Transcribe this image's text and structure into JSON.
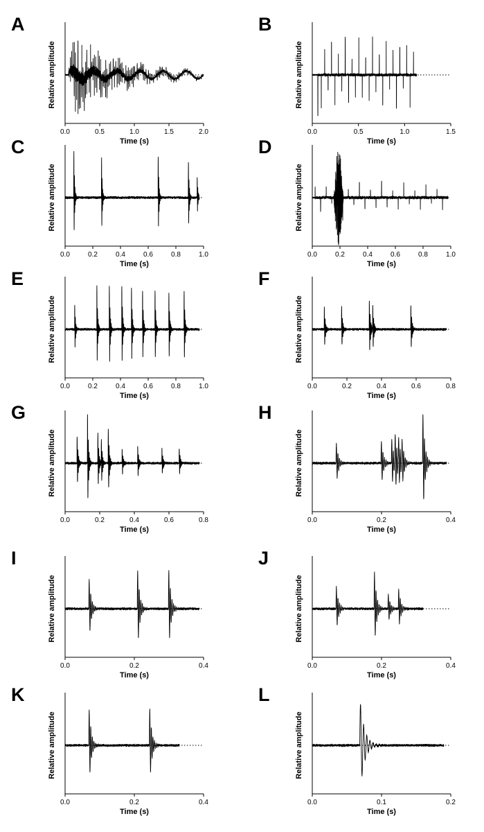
{
  "figure": {
    "layout": "6 rows × 2 columns of waveform panels"
  },
  "chart_data": [
    {
      "panel": "A",
      "type": "line",
      "xlabel": "Time (s)",
      "ylabel": "Relative amplitude",
      "xlim": [
        0,
        2.0
      ],
      "x_ticks": [
        "0.0",
        "0.5",
        "1.0",
        "1.5",
        "2.0"
      ],
      "signal": {
        "pattern": "continuous",
        "start": 0.05,
        "end": 2.0,
        "amp": 0.9,
        "peak_at": 0.12,
        "decay": 1.6,
        "rate": 55
      }
    },
    {
      "panel": "B",
      "type": "line",
      "xlabel": "Time (s)",
      "ylabel": "Relative amplitude",
      "xlim": [
        0,
        1.5
      ],
      "x_ticks": [
        "0.0",
        "0.5",
        "1.0",
        "1.5"
      ],
      "signal": {
        "pattern": "train",
        "start": 0.06,
        "end": 1.13,
        "period": 0.037,
        "amp": 0.75,
        "first_neg": 0.85,
        "dotted_to": 1.5
      }
    },
    {
      "panel": "C",
      "type": "line",
      "xlabel": "Time (s)",
      "ylabel": "Relative amplitude",
      "xlim": [
        0,
        1.1
      ],
      "x_ticks": [
        "0.0",
        "0.2",
        "0.4",
        "0.6",
        "0.8",
        "1.0"
      ],
      "signal": {
        "pattern": "pulses",
        "times": [
          0.07,
          0.29,
          0.74,
          0.98,
          1.05
        ],
        "amps": [
          0.95,
          0.8,
          0.85,
          0.75,
          0.4
        ],
        "dotted_to": 1.1
      }
    },
    {
      "panel": "D",
      "type": "line",
      "xlabel": "Time (s)",
      "ylabel": "Relative amplitude",
      "xlim": [
        0,
        1.0
      ],
      "x_ticks": [
        "0.0",
        "0.2",
        "0.4",
        "0.6",
        "0.8",
        "1.0"
      ],
      "signal": {
        "pattern": "train",
        "start": 0.02,
        "end": 0.98,
        "period": 0.04,
        "amp": 0.3,
        "burst_at": 0.19,
        "burst_amp": 1.0,
        "dotted_to": 1.0
      }
    },
    {
      "panel": "E",
      "type": "line",
      "xlabel": "Time (s)",
      "ylabel": "Relative amplitude",
      "xlim": [
        0,
        1.0
      ],
      "x_ticks": [
        "0.0",
        "0.2",
        "0.4",
        "0.6",
        "0.8",
        "1.0"
      ],
      "signal": {
        "pattern": "pulses",
        "times": [
          0.07,
          0.23,
          0.32,
          0.41,
          0.48,
          0.56,
          0.65,
          0.75,
          0.86
        ],
        "amps": [
          0.5,
          0.9,
          0.9,
          0.9,
          0.85,
          0.8,
          0.8,
          0.75,
          0.8
        ],
        "dotted_to": 1.0
      }
    },
    {
      "panel": "F",
      "type": "line",
      "xlabel": "Time (s)",
      "ylabel": "Relative amplitude",
      "xlim": [
        0,
        0.8
      ],
      "x_ticks": [
        "0.0",
        "0.2",
        "0.4",
        "0.6",
        "0.8"
      ],
      "signal": {
        "pattern": "pulses",
        "times": [
          0.07,
          0.17,
          0.33,
          0.35,
          0.57
        ],
        "amps": [
          0.45,
          0.45,
          0.6,
          0.5,
          0.5
        ],
        "dotted_to": 0.8
      }
    },
    {
      "panel": "G",
      "type": "line",
      "xlabel": "Time (s)",
      "ylabel": "Relative amplitude",
      "xlim": [
        0,
        0.8
      ],
      "x_ticks": [
        "0.0",
        "0.2",
        "0.4",
        "0.6",
        "0.8"
      ],
      "signal": {
        "pattern": "pulses",
        "times": [
          0.07,
          0.13,
          0.19,
          0.21,
          0.25,
          0.33,
          0.42,
          0.56,
          0.66
        ],
        "amps": [
          0.55,
          1.0,
          0.6,
          0.5,
          0.7,
          0.3,
          0.35,
          0.3,
          0.3
        ],
        "dotted_to": 0.8
      }
    },
    {
      "panel": "H",
      "type": "line",
      "xlabel": "Time (s)",
      "ylabel": "Relative amplitude",
      "xlim": [
        0,
        0.4
      ],
      "x_ticks": [
        "0.0",
        "0.2",
        "0.4"
      ],
      "signal": {
        "pattern": "pulses",
        "times": [
          0.07,
          0.2,
          0.23,
          0.24,
          0.25,
          0.26,
          0.32
        ],
        "amps": [
          0.4,
          0.45,
          0.5,
          0.55,
          0.5,
          0.45,
          1.0
        ],
        "dotted_to": 0.4
      }
    },
    {
      "panel": "I",
      "type": "line",
      "xlabel": "Time (s)",
      "ylabel": "Relative amplitude",
      "xlim": [
        0,
        0.4
      ],
      "x_ticks": [
        "0.0",
        "0.2",
        "0.4"
      ],
      "signal": {
        "pattern": "pulses",
        "times": [
          0.07,
          0.21,
          0.3
        ],
        "amps": [
          0.6,
          0.8,
          0.8
        ],
        "dotted_to": 0.4
      }
    },
    {
      "panel": "J",
      "type": "line",
      "xlabel": "Time (s)",
      "ylabel": "Relative amplitude",
      "xlim": [
        0,
        0.4
      ],
      "x_ticks": [
        "0.0",
        "0.2",
        "0.4"
      ],
      "signal": {
        "pattern": "pulses",
        "times": [
          0.07,
          0.18,
          0.22,
          0.25
        ],
        "amps": [
          0.45,
          0.75,
          0.3,
          0.4
        ],
        "dotted_to": 0.4,
        "ends": 0.32
      }
    },
    {
      "panel": "K",
      "type": "line",
      "xlabel": "Time (s)",
      "ylabel": "Relative amplitude",
      "xlim": [
        0,
        0.4
      ],
      "x_ticks": [
        "0.0",
        "0.2",
        "0.4"
      ],
      "signal": {
        "pattern": "pulses",
        "times": [
          0.07,
          0.245
        ],
        "amps": [
          0.75,
          0.75
        ],
        "dotted_to": 0.4,
        "ends": 0.33
      }
    },
    {
      "panel": "L",
      "type": "line",
      "xlabel": "Time (s)",
      "ylabel": "Relative amplitude",
      "xlim": [
        0,
        0.2
      ],
      "x_ticks": [
        "0.0",
        "0.1",
        "0.2"
      ],
      "signal": {
        "pattern": "pulses",
        "times": [
          0.07
        ],
        "amps": [
          0.85
        ],
        "dotted_to": 0.2,
        "ends": 0.19
      }
    }
  ]
}
